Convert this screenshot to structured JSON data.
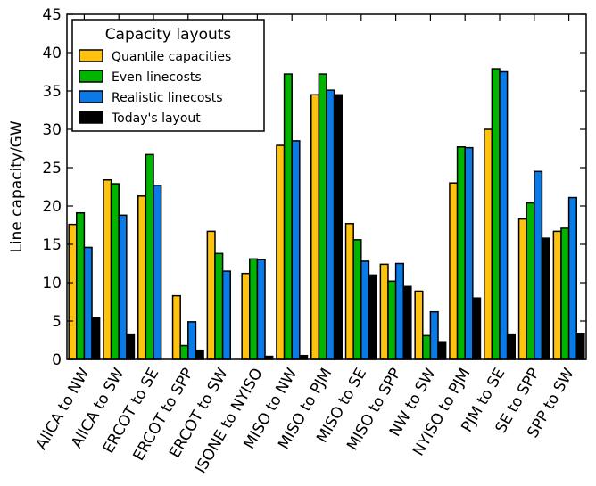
{
  "chart_data": {
    "type": "bar",
    "title": "",
    "xlabel": "",
    "ylabel": "Line capacity/GW",
    "ylim": [
      0,
      45
    ],
    "yticks": [
      0,
      5,
      10,
      15,
      20,
      25,
      30,
      35,
      40,
      45
    ],
    "grid": false,
    "legend": {
      "title": "Capacity layouts",
      "placement": "top-left"
    },
    "categories": [
      "AllCA to NW",
      "AllCA to SW",
      "ERCOT to SE",
      "ERCOT to SPP",
      "ERCOT to SW",
      "ISONE to NYISO",
      "MISO to NW",
      "MISO to PJM",
      "MISO to SE",
      "MISO to SPP",
      "NW to SW",
      "NYISO to PJM",
      "PJM to SE",
      "SE to SPP",
      "SPP to SW"
    ],
    "series": [
      {
        "name": "Quantile capacities",
        "color": "#ffc20e",
        "values": [
          17.6,
          23.4,
          21.3,
          8.3,
          16.7,
          11.2,
          27.9,
          34.5,
          17.7,
          12.4,
          8.9,
          23.0,
          30.0,
          18.3,
          16.7
        ]
      },
      {
        "name": "Even linecosts",
        "color": "#00b400",
        "values": [
          19.1,
          22.9,
          26.7,
          1.8,
          13.8,
          13.1,
          37.2,
          37.2,
          15.6,
          10.2,
          3.1,
          27.7,
          37.9,
          20.4,
          17.1
        ]
      },
      {
        "name": "Realistic linecosts",
        "color": "#0a7ae6",
        "values": [
          14.6,
          18.8,
          22.7,
          4.9,
          11.5,
          13.0,
          28.5,
          35.1,
          12.8,
          12.5,
          6.2,
          27.6,
          37.5,
          24.5,
          21.1
        ]
      },
      {
        "name": "Today's layout",
        "color": "#000000",
        "values": [
          5.4,
          3.3,
          0.0,
          1.2,
          0.0,
          0.4,
          0.5,
          34.5,
          11.0,
          9.5,
          2.3,
          8.0,
          3.3,
          15.8,
          3.4
        ]
      }
    ]
  }
}
